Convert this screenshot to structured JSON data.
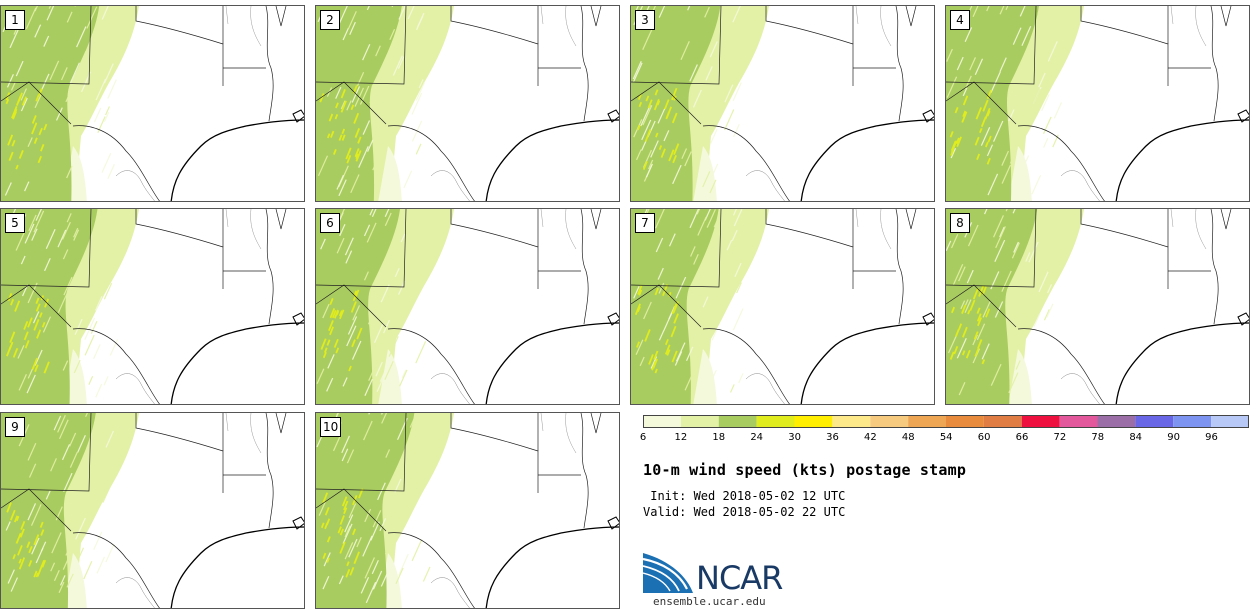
{
  "panels": [
    {
      "label": "1"
    },
    {
      "label": "2"
    },
    {
      "label": "3"
    },
    {
      "label": "4"
    },
    {
      "label": "5"
    },
    {
      "label": "6"
    },
    {
      "label": "7"
    },
    {
      "label": "8"
    },
    {
      "label": "9"
    },
    {
      "label": "10"
    }
  ],
  "colorbar": {
    "colors": [
      "#f4f9dc",
      "#e3f1a6",
      "#a9cc60",
      "#e0ec1e",
      "#ffee00",
      "#fde989",
      "#f6cb80",
      "#eea655",
      "#e98b3c",
      "#e07d45",
      "#ee1140",
      "#e3589c",
      "#9c6ea8",
      "#6a67e7",
      "#7d95f0",
      "#b8c9f8"
    ],
    "ticks": [
      "6",
      "12",
      "18",
      "24",
      "30",
      "36",
      "42",
      "48",
      "54",
      "60",
      "66",
      "72",
      "78",
      "84",
      "90",
      "96"
    ]
  },
  "title": "10-m wind speed (kts) postage stamp",
  "init_line": " Init: Wed 2018-05-02 12 UTC",
  "valid_line": "Valid: Wed 2018-05-02 22 UTC",
  "logo": {
    "text": "NCAR",
    "url": "ensemble.ucar.edu",
    "colors": {
      "blue": "#1b6fb3",
      "dark": "#1a3a66"
    }
  }
}
